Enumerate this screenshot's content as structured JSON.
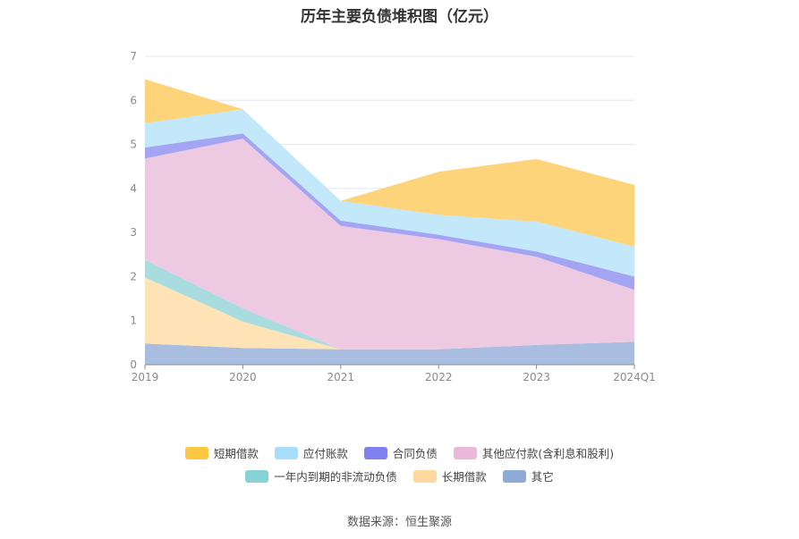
{
  "title": "历年主要负债堆积图（亿元）",
  "source": "数据来源：恒生聚源",
  "chart_data": {
    "type": "area",
    "stacked": true,
    "categories": [
      "2019",
      "2020",
      "2021",
      "2022",
      "2023",
      "2024Q1"
    ],
    "ylim": [
      0,
      7
    ],
    "yticks": [
      "0",
      "1",
      "2",
      "3",
      "4",
      "5",
      "6",
      "7"
    ],
    "grid": true,
    "legend_position": "bottom",
    "series": [
      {
        "name": "其它",
        "color": "#a9bde0",
        "values": [
          0.48,
          0.38,
          0.35,
          0.35,
          0.45,
          0.52
        ]
      },
      {
        "name": "长期借款",
        "color": "#fde3b5",
        "values": [
          1.5,
          0.6,
          0.0,
          0.0,
          0.0,
          0.0
        ]
      },
      {
        "name": "一年内到期的非流动负债",
        "color": "#a8dcde",
        "values": [
          0.4,
          0.3,
          0.0,
          0.0,
          0.0,
          0.0
        ]
      },
      {
        "name": "其他应付款(含利息和股利)",
        "color": "#edcae2",
        "values": [
          2.3,
          3.85,
          2.8,
          2.5,
          2.0,
          1.18
        ]
      },
      {
        "name": "合同负债",
        "color": "#a3a4f2",
        "values": [
          0.25,
          0.12,
          0.12,
          0.1,
          0.12,
          0.3
        ]
      },
      {
        "name": "应付账款",
        "color": "#c2e8f9",
        "values": [
          0.55,
          0.55,
          0.45,
          0.45,
          0.68,
          0.68
        ]
      },
      {
        "name": "短期借款",
        "color": "#fed47a",
        "values": [
          1.0,
          0.0,
          0.0,
          0.98,
          1.42,
          1.4
        ]
      }
    ],
    "legend_rows": [
      [
        {
          "name": "短期借款",
          "color": "#fcc743"
        },
        {
          "name": "应付账款",
          "color": "#a7defa"
        },
        {
          "name": "合同负债",
          "color": "#8180ef"
        },
        {
          "name": "其他应付款(含利息和股利)",
          "color": "#eab8d8"
        }
      ],
      [
        {
          "name": "一年内到期的非流动负债",
          "color": "#86d3d6"
        },
        {
          "name": "长期借款",
          "color": "#fdd9a1"
        },
        {
          "name": "其它",
          "color": "#8eaad6"
        }
      ]
    ]
  }
}
